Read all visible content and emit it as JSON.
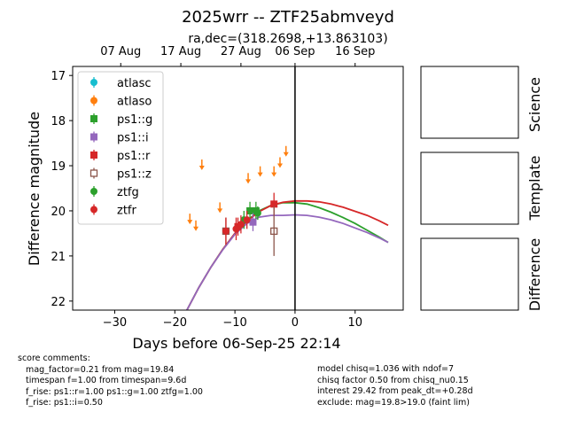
{
  "title": "2025wrr -- ZTF25abmveyd",
  "subtitle": "ra,dec=(318.2698,+13.863103)",
  "chart_data": {
    "type": "scatter",
    "title": "2025wrr -- ZTF25abmveyd",
    "subtitle": "ra,dec=(318.2698,+13.863103)",
    "xlabel": "Days before 06-Sep-25 22:14",
    "ylabel": "Difference magnitude",
    "xlim": [
      -37,
      18
    ],
    "ylim": [
      22.2,
      16.8
    ],
    "y_inverted": true,
    "x_ticks": [
      -30,
      -20,
      -10,
      0,
      10
    ],
    "y_ticks": [
      17,
      18,
      19,
      20,
      21,
      22
    ],
    "top_axis_ticks": [
      {
        "x": -29,
        "label": "07 Aug"
      },
      {
        "x": -19,
        "label": "17 Aug"
      },
      {
        "x": -9,
        "label": "27 Aug"
      },
      {
        "x": 0,
        "label": "06 Sep"
      },
      {
        "x": 10,
        "label": "16 Sep"
      }
    ],
    "vline_x": 0,
    "legend_position": "upper-left",
    "series": [
      {
        "name": "atlasc",
        "color": "#17becf",
        "marker": "circle",
        "points": []
      },
      {
        "name": "atlaso",
        "color": "#ff7f0e",
        "marker": "arrow-down",
        "upper_limits": [
          [
            -17.5,
            20.2
          ],
          [
            -16.5,
            20.35
          ],
          [
            -15.5,
            19.0
          ],
          [
            -12.5,
            19.95
          ],
          [
            -7.8,
            19.3
          ],
          [
            -5.8,
            19.15
          ],
          [
            -3.5,
            19.15
          ],
          [
            -2.5,
            18.95
          ],
          [
            -1.5,
            18.7
          ]
        ]
      },
      {
        "name": "ps1::g",
        "color": "#2ca02c",
        "marker": "square",
        "points": [
          [
            -7.5,
            20.0,
            0.2
          ],
          [
            -6.5,
            20.0,
            0.2
          ]
        ]
      },
      {
        "name": "ps1::i",
        "color": "#9467bd",
        "marker": "square",
        "points": [
          [
            -7.0,
            20.25,
            0.2
          ]
        ]
      },
      {
        "name": "ps1::r",
        "color": "#d62728",
        "marker": "square",
        "points": [
          [
            -3.5,
            19.85,
            0.25
          ],
          [
            -9.5,
            20.35,
            0.2
          ]
        ]
      },
      {
        "name": "ps1::z",
        "color": "#8c564b",
        "marker": "square-open",
        "points": [
          [
            -11.5,
            20.45,
            0.3
          ],
          [
            -3.5,
            20.45,
            0.55
          ]
        ]
      },
      {
        "name": "ztfg",
        "color": "#2ca02c",
        "marker": "circle",
        "points": [
          [
            -8.5,
            20.2,
            0.2
          ],
          [
            -6.2,
            20.05,
            0.15
          ]
        ]
      },
      {
        "name": "ztfr",
        "color": "#d62728",
        "marker": "circle",
        "points": [
          [
            -11.5,
            20.45,
            0.3
          ],
          [
            -9.8,
            20.4,
            0.25
          ],
          [
            -9.0,
            20.3,
            0.2
          ],
          [
            -8.0,
            20.2,
            0.2
          ]
        ]
      }
    ],
    "model_curves": [
      {
        "name": "g",
        "color": "#2ca02c",
        "points": [
          [
            -18,
            22.2
          ],
          [
            -16,
            21.7
          ],
          [
            -14,
            21.25
          ],
          [
            -12,
            20.85
          ],
          [
            -10,
            20.5
          ],
          [
            -8,
            20.22
          ],
          [
            -6,
            20.0
          ],
          [
            -4,
            19.88
          ],
          [
            -2,
            19.82
          ],
          [
            0,
            19.82
          ],
          [
            2,
            19.85
          ],
          [
            4,
            19.93
          ],
          [
            6,
            20.03
          ],
          [
            8,
            20.15
          ],
          [
            10,
            20.28
          ],
          [
            12,
            20.43
          ],
          [
            14,
            20.58
          ],
          [
            15.5,
            20.7
          ]
        ]
      },
      {
        "name": "r",
        "color": "#d62728",
        "points": [
          [
            -18,
            22.2
          ],
          [
            -16,
            21.7
          ],
          [
            -14,
            21.25
          ],
          [
            -12,
            20.85
          ],
          [
            -10,
            20.5
          ],
          [
            -8,
            20.23
          ],
          [
            -6,
            20.02
          ],
          [
            -4,
            19.88
          ],
          [
            -2,
            19.81
          ],
          [
            0,
            19.78
          ],
          [
            2,
            19.78
          ],
          [
            4,
            19.8
          ],
          [
            6,
            19.85
          ],
          [
            8,
            19.92
          ],
          [
            10,
            20.01
          ],
          [
            12,
            20.1
          ],
          [
            14,
            20.22
          ],
          [
            15.5,
            20.32
          ]
        ]
      },
      {
        "name": "i",
        "color": "#9467bd",
        "points": [
          [
            -18,
            22.2
          ],
          [
            -16,
            21.7
          ],
          [
            -14,
            21.25
          ],
          [
            -12,
            20.86
          ],
          [
            -10,
            20.52
          ],
          [
            -8,
            20.28
          ],
          [
            -6,
            20.14
          ],
          [
            -4,
            20.1
          ],
          [
            -2,
            20.1
          ],
          [
            0,
            20.09
          ],
          [
            2,
            20.1
          ],
          [
            4,
            20.14
          ],
          [
            6,
            20.2
          ],
          [
            8,
            20.28
          ],
          [
            10,
            20.38
          ],
          [
            12,
            20.48
          ],
          [
            14,
            20.6
          ],
          [
            15.5,
            20.7
          ]
        ]
      }
    ]
  },
  "side_panels": [
    "Science",
    "Template",
    "Difference"
  ],
  "comments_left": [
    "score comments:",
    "   mag_factor=0.21 from mag=19.84",
    "   timespan f=1.00 from timespan=9.6d",
    "   f_rise: ps1::r=1.00 ps1::g=1.00 ztfg=1.00",
    "   f_rise: ps1::i=0.50"
  ],
  "comments_right": [
    "model chisq=1.036 with ndof=7",
    "chisq factor 0.50 from chisq_nu0.15",
    "interest 29.42 from peak_dt=+0.28d",
    "exclude: mag=19.8>19.0 (faint lim)"
  ]
}
